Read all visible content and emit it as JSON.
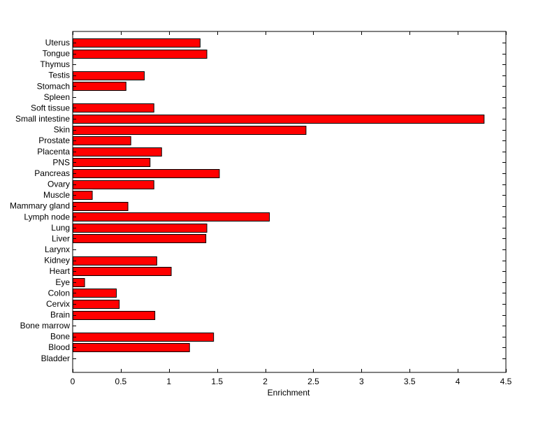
{
  "chart_data": {
    "type": "bar",
    "orientation": "horizontal",
    "xlabel": "Enrichment",
    "ylabel": "",
    "title": "",
    "xlim": [
      0,
      4.5
    ],
    "xticks": [
      "0",
      "0.5",
      "1",
      "1.5",
      "2",
      "2.5",
      "3",
      "3.5",
      "4",
      "4.5"
    ],
    "grid": false,
    "bar_color": "#ff0000",
    "categories": [
      "Uterus",
      "Tongue",
      "Thymus",
      "Testis",
      "Stomach",
      "Spleen",
      "Soft tissue",
      "Small intestine",
      "Skin",
      "Prostate",
      "Placenta",
      "PNS",
      "Pancreas",
      "Ovary",
      "Muscle",
      "Mammary gland",
      "Lymph node",
      "Lung",
      "Liver",
      "Larynx",
      "Kidney",
      "Heart",
      "Eye",
      "Colon",
      "Cervix",
      "Brain",
      "Bone marrow",
      "Bone",
      "Blood",
      "Bladder"
    ],
    "values": [
      1.32,
      1.39,
      0,
      0.74,
      0.55,
      0,
      0.84,
      4.27,
      2.42,
      0.6,
      0.92,
      0.8,
      1.52,
      0.84,
      0.2,
      0.57,
      2.04,
      1.39,
      1.38,
      0,
      0.87,
      1.02,
      0.12,
      0.45,
      0.48,
      0.85,
      0,
      1.46,
      1.21,
      0
    ]
  }
}
